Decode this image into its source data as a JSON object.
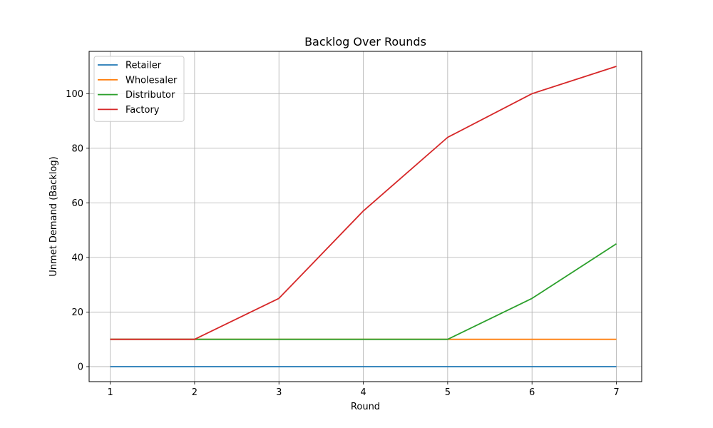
{
  "chart_data": {
    "type": "line",
    "title": "Backlog Over Rounds",
    "xlabel": "Round",
    "ylabel": "Unmet Demand (Backlog)",
    "x": [
      1,
      2,
      3,
      4,
      5,
      6,
      7
    ],
    "xlim": [
      0.75,
      7.3
    ],
    "ylim": [
      -5.5,
      115.5
    ],
    "xticks": [
      1,
      2,
      3,
      4,
      5,
      6,
      7
    ],
    "yticks": [
      0,
      20,
      40,
      60,
      80,
      100
    ],
    "grid": true,
    "legend_position": "top-left",
    "series": [
      {
        "name": "Retailer",
        "color": "#1f77b4",
        "values": [
          0,
          0,
          0,
          0,
          0,
          0,
          0
        ]
      },
      {
        "name": "Wholesaler",
        "color": "#ff7f0e",
        "values": [
          10,
          10,
          10,
          10,
          10,
          10,
          10
        ]
      },
      {
        "name": "Distributor",
        "color": "#2ca02c",
        "values": [
          10,
          10,
          10,
          10,
          10,
          25,
          45
        ]
      },
      {
        "name": "Factory",
        "color": "#d62728",
        "values": [
          10,
          10,
          25,
          57,
          84,
          100,
          110
        ]
      }
    ]
  }
}
